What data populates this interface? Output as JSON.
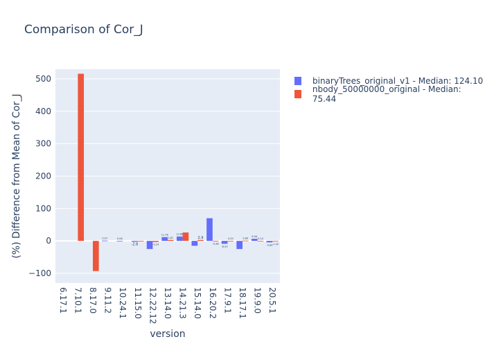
{
  "chart_data": {
    "type": "bar",
    "title": "Comparison of Cor_J",
    "xlabel": "version",
    "ylabel": "(%) Difference from Mean of Cor_J",
    "ylim": [
      -130,
      530
    ],
    "yticks": [
      -100,
      0,
      100,
      200,
      300,
      400,
      500
    ],
    "grid": true,
    "legend_position": "right",
    "categories": [
      "6.17.1",
      "7.10.1",
      "8.17.0",
      "9.11.2",
      "10.24.1",
      "11.15.0",
      "12.22.12",
      "13.14.0",
      "14.21.3",
      "15.14.0",
      "16.20.2",
      "17.9.1",
      "18.17.1",
      "19.9.0",
      "20.5.1"
    ],
    "series": [
      {
        "name": "binaryTrees_original_v1 - Median: 124.10",
        "color": "#636efa",
        "values": [
          null,
          null,
          null,
          0.97,
          0.06,
          -2.8,
          -25,
          11.76,
          13.68,
          -15,
          70,
          -8.93,
          -25,
          6.56,
          -4.64
        ],
        "labels": [
          "",
          "",
          "",
          "0.97",
          "0.06",
          "-2.8",
          "",
          "11.76",
          "13.68",
          "",
          "",
          "-8.93",
          "",
          "6.56",
          "-4.64"
        ]
      },
      {
        "name": "nbody_50000000_original - Median: 75.44",
        "color": "#ef553b",
        "values": [
          null,
          516,
          -93,
          null,
          null,
          -1.5,
          -3.24,
          2.87,
          26,
          2.9,
          -0.98,
          0.29,
          0.89,
          0.14,
          -1.42
        ],
        "labels": [
          "",
          "",
          "",
          "",
          "",
          "",
          "-3.24",
          "2.87",
          "",
          "2.9",
          "-0.98",
          "0.29",
          "0.89",
          "0.14",
          "-1.42"
        ]
      }
    ]
  }
}
